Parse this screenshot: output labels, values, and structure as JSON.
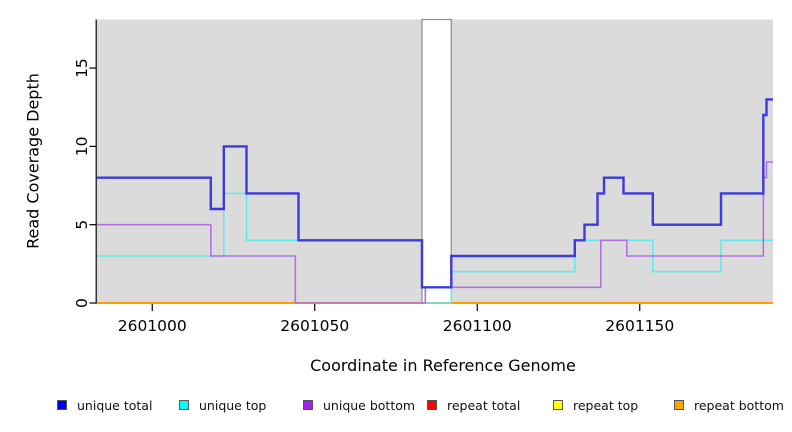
{
  "figure": {
    "xlabel": "Coordinate in Reference Genome",
    "ylabel": "Read Coverage Depth"
  },
  "legend": {
    "swatch_border_color": "#555555",
    "items": [
      {
        "label": "unique total",
        "fill": "#0000EE"
      },
      {
        "label": "unique top",
        "fill": "#00FFFF"
      },
      {
        "label": "unique bottom",
        "fill": "#A020F0"
      },
      {
        "label": "repeat total",
        "fill": "#FF0000"
      },
      {
        "label": "repeat top",
        "fill": "#FFFF00"
      },
      {
        "label": "repeat bottom",
        "fill": "#FFA500"
      }
    ]
  },
  "chart_data": {
    "type": "line",
    "subtype": "step-after",
    "title": "",
    "xlabel": "Coordinate in Reference Genome",
    "ylabel": "Read Coverage Depth",
    "xlim": [
      2600983,
      2601191
    ],
    "ylim": [
      0,
      18.1
    ],
    "x_ticks": [
      2601000,
      2601050,
      2601100,
      2601150
    ],
    "y_ticks": [
      0,
      5,
      10,
      15
    ],
    "grid": false,
    "legend_position": "bottom",
    "plot_background": "#DBDBDB",
    "axis_color": "#000000",
    "gap_band": {
      "x_start": 2601083,
      "x_end": 2601092,
      "fill": "#FFFFFF",
      "border": "#8C8C8C"
    },
    "draw_order": [
      "repeat total",
      "repeat top",
      "repeat bottom",
      "unique top",
      "unique bottom",
      "unique total"
    ],
    "series": [
      {
        "name": "unique total",
        "color": "#3A3AE0",
        "line_width": 2.4,
        "steps": [
          [
            2600983,
            8
          ],
          [
            2601018,
            6
          ],
          [
            2601022,
            10
          ],
          [
            2601029,
            7
          ],
          [
            2601045,
            4
          ],
          [
            2601083,
            1
          ],
          [
            2601092,
            3
          ],
          [
            2601130,
            4
          ],
          [
            2601133,
            5
          ],
          [
            2601137,
            7
          ],
          [
            2601139,
            8
          ],
          [
            2601145,
            7
          ],
          [
            2601154,
            5
          ],
          [
            2601175,
            7
          ],
          [
            2601188,
            12
          ],
          [
            2601189,
            13
          ]
        ],
        "x_end": 2601191
      },
      {
        "name": "unique top",
        "color": "#60EAEE",
        "line_width": 1.6,
        "steps": [
          [
            2600983,
            3
          ],
          [
            2601022,
            7
          ],
          [
            2601029,
            4
          ],
          [
            2601083,
            1
          ],
          [
            2601084,
            0
          ],
          [
            2601092,
            2
          ],
          [
            2601130,
            4
          ],
          [
            2601154,
            2
          ],
          [
            2601175,
            4
          ]
        ],
        "x_end": 2601191
      },
      {
        "name": "unique bottom",
        "color": "#B470E0",
        "line_width": 1.6,
        "steps": [
          [
            2600983,
            5
          ],
          [
            2601018,
            3
          ],
          [
            2601044,
            0
          ],
          [
            2601084,
            1
          ],
          [
            2601138,
            4
          ],
          [
            2601146,
            3
          ],
          [
            2601188,
            8
          ],
          [
            2601189,
            9
          ]
        ],
        "x_end": 2601191
      },
      {
        "name": "repeat total",
        "color": "#DD0000",
        "line_width": 1.5,
        "steps": [
          [
            2600983,
            0
          ]
        ],
        "x_end": 2601191
      },
      {
        "name": "repeat top",
        "color": "#EEEE00",
        "line_width": 1.5,
        "steps": [
          [
            2600983,
            0
          ]
        ],
        "x_end": 2601191
      },
      {
        "name": "repeat bottom",
        "color": "#FF9800",
        "line_width": 1.8,
        "steps": [
          [
            2600983,
            0
          ]
        ],
        "x_end": 2601191
      }
    ]
  }
}
